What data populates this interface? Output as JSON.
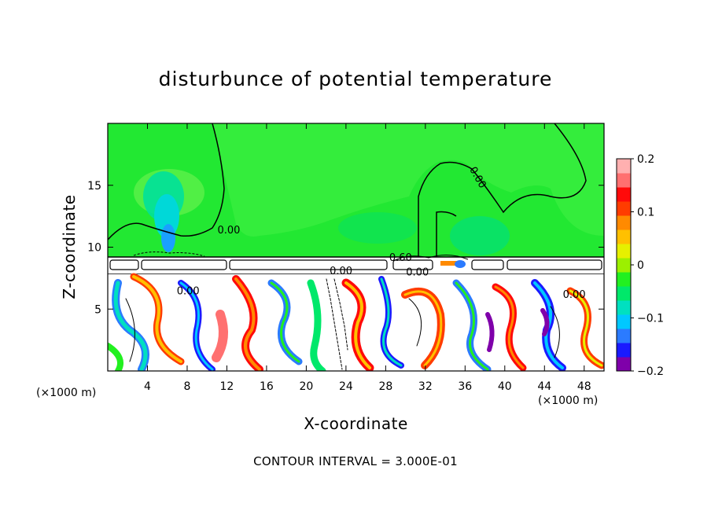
{
  "chart_data": {
    "type": "heatmap",
    "title": "disturbunce of potential temperature",
    "xlabel": "X-coordinate",
    "ylabel": "Z-coordinate",
    "x_unit_label_left": "(×1000 m)",
    "x_unit_label_right": "(×1000 m)",
    "xlim": [
      0,
      50
    ],
    "ylim": [
      0,
      20
    ],
    "x_ticks": [
      4,
      8,
      12,
      16,
      20,
      24,
      28,
      32,
      36,
      40,
      44,
      48
    ],
    "y_ticks": [
      5,
      10,
      15
    ],
    "colorbar": {
      "range": [
        -0.2,
        0.2
      ],
      "tick_values": [
        0.2,
        0.1,
        0,
        -0.1,
        -0.2
      ],
      "tick_labels": [
        "0.2",
        "0.1",
        "0",
        "−0.1",
        "−0.2"
      ],
      "colors": [
        "#7f00aa",
        "#1a1aff",
        "#2b7bff",
        "#00c8ff",
        "#00e0c0",
        "#00e86a",
        "#22f020",
        "#9cf000",
        "#e6f000",
        "#ffc000",
        "#ff8a00",
        "#ff3c00",
        "#ff0a0a",
        "#ff7070",
        "#ffb0b0"
      ]
    },
    "contour_labels": [
      {
        "text": "0.00",
        "x": 12.2,
        "z": 11.1
      },
      {
        "text": "0.00",
        "x": 37.0,
        "z": 15.5
      },
      {
        "text": "0.60",
        "x": 29.5,
        "z": 8.9
      },
      {
        "text": "0.00",
        "x": 23.5,
        "z": 7.8
      },
      {
        "text": "0.00",
        "x": 31.2,
        "z": 7.7
      },
      {
        "text": "0.00",
        "x": 47.0,
        "z": 5.9
      },
      {
        "text": "0.00",
        "x": 8.1,
        "z": 6.2
      }
    ]
  },
  "footer": "CONTOUR INTERVAL = 3.000E-01"
}
